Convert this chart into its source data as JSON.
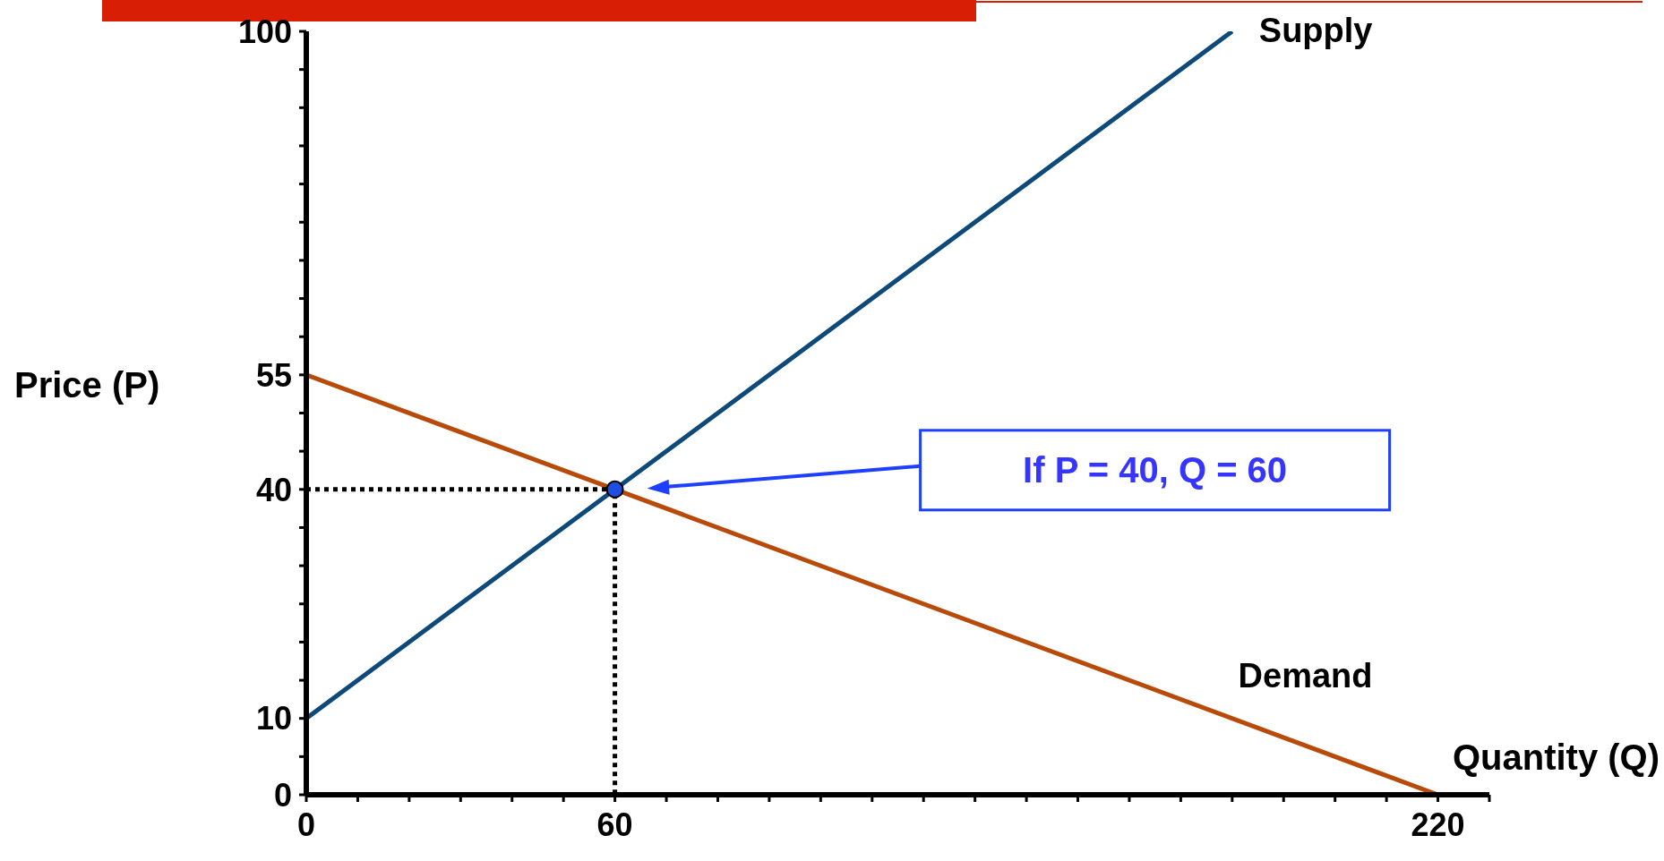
{
  "chart_data": {
    "type": "line",
    "xlabel": "Quantity (Q)",
    "ylabel": "Price (P)",
    "xlim": [
      0,
      230
    ],
    "xticks": [
      0,
      {
        "value": 10,
        "label": null
      },
      {
        "value": 20,
        "label": null
      },
      {
        "value": 30,
        "label": null
      },
      {
        "value": 40,
        "label": null
      },
      {
        "value": 50,
        "label": null
      },
      60,
      {
        "value": 70,
        "label": null
      },
      {
        "value": 80,
        "label": null
      },
      {
        "value": 90,
        "label": null
      },
      {
        "value": 100,
        "label": null
      },
      {
        "value": 110,
        "label": null
      },
      {
        "value": 120,
        "label": null
      },
      {
        "value": 130,
        "label": null
      },
      {
        "value": 140,
        "label": null
      },
      {
        "value": 150,
        "label": null
      },
      {
        "value": 160,
        "label": null
      },
      {
        "value": 170,
        "label": null
      },
      {
        "value": 180,
        "label": null
      },
      {
        "value": 190,
        "label": null
      },
      {
        "value": 200,
        "label": null
      },
      {
        "value": 210,
        "label": null
      },
      220,
      {
        "value": 230,
        "label": null
      }
    ],
    "ylim": [
      0,
      100
    ],
    "yticks": [
      0,
      {
        "value": 5,
        "label": null
      },
      10,
      {
        "value": 15,
        "label": null
      },
      {
        "value": 20,
        "label": null
      },
      {
        "value": 25,
        "label": null
      },
      {
        "value": 30,
        "label": null
      },
      {
        "value": 35,
        "label": null
      },
      40,
      {
        "value": 45,
        "label": null
      },
      {
        "value": 50,
        "label": null
      },
      55,
      {
        "value": 60,
        "label": null
      },
      {
        "value": 65,
        "label": null
      },
      {
        "value": 70,
        "label": null
      },
      {
        "value": 75,
        "label": null
      },
      {
        "value": 80,
        "label": null
      },
      {
        "value": 85,
        "label": null
      },
      {
        "value": 90,
        "label": null
      },
      {
        "value": 95,
        "label": null
      },
      100
    ],
    "series": [
      {
        "name": "Supply",
        "color": "#0d4a7a",
        "x": [
          0,
          180
        ],
        "values": [
          10,
          100
        ]
      },
      {
        "name": "Demand",
        "color": "#b84a0a",
        "x": [
          0,
          220
        ],
        "values": [
          55,
          0
        ]
      },
      {
        "color": "#000000",
        "line_style": "dotted",
        "x": [
          0,
          60,
          60
        ],
        "values": [
          40,
          40,
          0
        ]
      },
      {
        "type": "scatter",
        "color": "#1f4fe0",
        "marker": "circle",
        "x": [
          60
        ],
        "values": [
          40
        ]
      }
    ],
    "annotations": [
      "If P = 40, Q = 60"
    ],
    "grid": false,
    "legend": false
  }
}
